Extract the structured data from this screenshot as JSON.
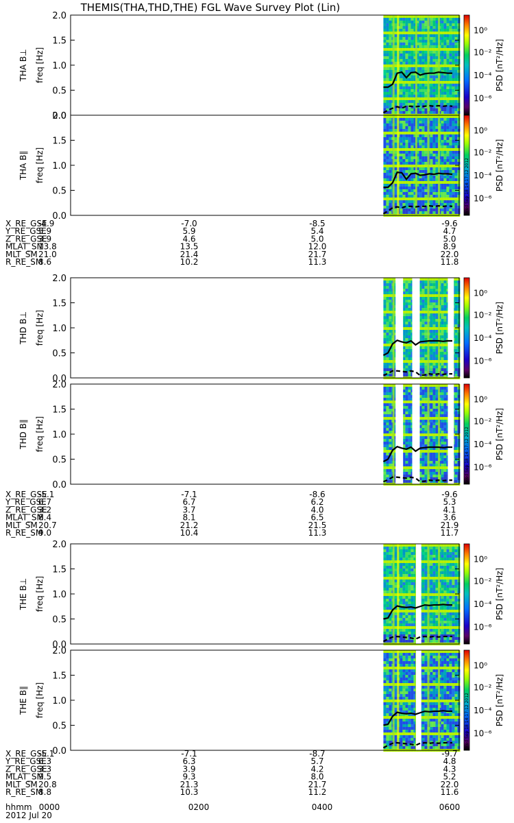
{
  "chart_data": {
    "type": "heatmap",
    "title": "THEMIS(THA,THD,THE) FGL Wave Survey Plot (Lin)",
    "date": "2012 Jul 20",
    "timestamp": "Wed Sep 18 14:17:12 2012",
    "x_labels_row": "hhmm",
    "x_ticks": [
      "0000",
      "0200",
      "0400",
      "0600"
    ],
    "ylim": [
      0,
      2.0
    ],
    "y_ticks": [
      "0.0",
      "0.5",
      "1.0",
      "1.5",
      "2.0"
    ],
    "freq_label": "freq [Hz]",
    "colorbar_label": "PSD [nT²/Hz]",
    "colorbar_ticks": [
      "10⁰",
      "10⁻²",
      "10⁻⁴",
      "10⁻⁶"
    ],
    "probes": [
      {
        "name": "THA",
        "panels": [
          {
            "label": "THA B⊥",
            "data_start": "0450",
            "gaps": [],
            "line_solid": [
              0.56,
              0.56,
              0.62,
              0.84,
              0.86,
              0.75,
              0.85,
              0.86,
              0.8,
              0.83,
              0.84,
              0.84,
              0.86,
              0.85,
              0.84,
              0.84
            ],
            "line_dashed": [
              0.05,
              0.1,
              0.14,
              0.17,
              0.14,
              0.18,
              0.18,
              0.17,
              0.18,
              0.18,
              0.19,
              0.18,
              0.19,
              0.18,
              0.19,
              0.18
            ]
          },
          {
            "label": "THA B∥",
            "data_start": "0450",
            "gaps": [],
            "line_solid": [
              0.56,
              0.56,
              0.65,
              0.86,
              0.85,
              0.72,
              0.83,
              0.84,
              0.8,
              0.81,
              0.83,
              0.82,
              0.84,
              0.83,
              0.83,
              0.82
            ],
            "line_dashed": [
              0.03,
              0.09,
              0.15,
              0.17,
              0.15,
              0.18,
              0.18,
              0.17,
              0.18,
              0.18,
              0.19,
              0.18,
              0.19,
              0.18,
              0.19,
              0.18
            ]
          }
        ],
        "ephemeris": {
          "rows": [
            "X_RE_GSE",
            "Y_RE_GSE",
            "Z_RE_GSE",
            "MLAT_SM",
            "MLT_SM",
            "R_RE_SM"
          ],
          "values": [
            [
              "-4.9",
              "-7.0",
              "-8.5",
              "-9.6"
            ],
            [
              "5.9",
              "5.9",
              "5.4",
              "4.7"
            ],
            [
              "3.9",
              "4.6",
              "5.0",
              "5.0"
            ],
            [
              "13.8",
              "13.5",
              "12.0",
              "8.9"
            ],
            [
              "21.0",
              "21.4",
              "21.7",
              "22.0"
            ],
            [
              "8.6",
              "10.2",
              "11.3",
              "11.8"
            ]
          ]
        }
      },
      {
        "name": "THD",
        "panels": [
          {
            "label": "THD B⊥",
            "data_start": "0450",
            "gaps": [
              [
                0.16,
                0.26
              ],
              [
                0.38,
                0.48
              ],
              [
                0.85,
                0.93
              ]
            ],
            "line_solid": [
              0.45,
              0.5,
              0.68,
              0.75,
              0.72,
              0.7,
              0.74,
              0.66,
              0.72,
              0.73,
              0.74,
              0.74,
              0.74,
              0.73,
              0.74,
              0.74
            ],
            "line_dashed": [
              0.05,
              0.09,
              0.14,
              0.14,
              0.13,
              0.12,
              0.14,
              0.12,
              0.05,
              0.06,
              0.08,
              0.07,
              0.08,
              0.07,
              0.08,
              0.08
            ]
          },
          {
            "label": "THD B∥",
            "data_start": "0450",
            "gaps": [
              [
                0.16,
                0.26
              ],
              [
                0.38,
                0.48
              ],
              [
                0.85,
                0.93
              ]
            ],
            "line_solid": [
              0.45,
              0.5,
              0.68,
              0.75,
              0.72,
              0.7,
              0.74,
              0.66,
              0.72,
              0.73,
              0.74,
              0.74,
              0.74,
              0.73,
              0.74,
              0.74
            ],
            "line_dashed": [
              0.05,
              0.09,
              0.14,
              0.14,
              0.13,
              0.12,
              0.14,
              0.12,
              0.05,
              0.06,
              0.08,
              0.07,
              0.08,
              0.07,
              0.08,
              0.08
            ]
          }
        ],
        "ephemeris": {
          "rows": [
            "X_RE_GSE",
            "Y_RE_GSE",
            "Z_RE_GSE",
            "MLAT_SM",
            "MLT_SM",
            "R_RE_SM"
          ],
          "values": [
            [
              "-5.1",
              "-7.1",
              "-8.6",
              "-9.6"
            ],
            [
              "6.7",
              "6.7",
              "6.2",
              "5.3"
            ],
            [
              "3.2",
              "3.7",
              "4.0",
              "4.1"
            ],
            [
              "8.4",
              "8.1",
              "6.5",
              "3.6"
            ],
            [
              "20.7",
              "21.2",
              "21.5",
              "21.9"
            ],
            [
              "9.0",
              "10.4",
              "11.3",
              "11.7"
            ]
          ]
        }
      },
      {
        "name": "THE",
        "panels": [
          {
            "label": "THE B⊥",
            "data_start": "0450",
            "gaps": [
              [
                0.43,
                0.5
              ]
            ],
            "line_solid": [
              0.5,
              0.52,
              0.68,
              0.76,
              0.74,
              0.73,
              0.74,
              0.72,
              0.75,
              0.78,
              0.77,
              0.78,
              0.78,
              0.79,
              0.78,
              0.78
            ],
            "line_dashed": [
              0.05,
              0.1,
              0.14,
              0.15,
              0.14,
              0.13,
              0.12,
              0.1,
              0.14,
              0.15,
              0.14,
              0.15,
              0.14,
              0.15,
              0.15,
              0.15
            ]
          },
          {
            "label": "THE B∥",
            "data_start": "0450",
            "gaps": [
              [
                0.43,
                0.5
              ]
            ],
            "line_solid": [
              0.5,
              0.52,
              0.68,
              0.76,
              0.74,
              0.73,
              0.74,
              0.72,
              0.75,
              0.78,
              0.77,
              0.78,
              0.78,
              0.79,
              0.78,
              0.78
            ],
            "line_dashed": [
              0.05,
              0.1,
              0.14,
              0.15,
              0.14,
              0.13,
              0.12,
              0.1,
              0.14,
              0.15,
              0.14,
              0.15,
              0.14,
              0.15,
              0.15,
              0.15
            ]
          }
        ],
        "ephemeris": {
          "rows": [
            "X_RE_GSE",
            "Y_RE_GSE",
            "Z_RE_GSE",
            "MLAT_SM",
            "MLT_SM",
            "R_RE_SM"
          ],
          "values": [
            [
              "-5.1",
              "-7.1",
              "-8.7",
              "-9.7"
            ],
            [
              "6.3",
              "6.3",
              "5.7",
              "4.8"
            ],
            [
              "3.3",
              "3.9",
              "4.2",
              "4.3"
            ],
            [
              "9.5",
              "9.3",
              "8.0",
              "5.2"
            ],
            [
              "20.8",
              "21.3",
              "21.7",
              "22.0"
            ],
            [
              "8.8",
              "10.3",
              "11.2",
              "11.6"
            ]
          ]
        }
      }
    ]
  }
}
